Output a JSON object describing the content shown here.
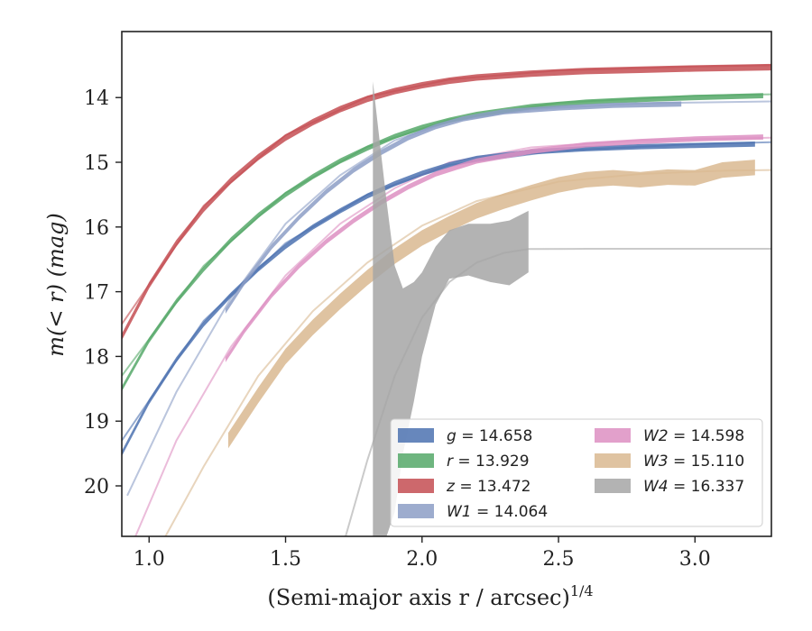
{
  "chart_data": {
    "type": "line",
    "xlabel": "(Semi-major axis r / arcsec)",
    "xlabel_superscript": "1/4",
    "ylabel": "m(< r) (mag)",
    "xlim": [
      0.9,
      3.28
    ],
    "ylim": [
      20.78,
      12.98
    ],
    "y_inverted": true,
    "x_ticks": [
      1.0,
      1.5,
      2.0,
      2.5,
      3.0
    ],
    "x_tick_labels": [
      "1.0",
      "1.5",
      "2.0",
      "2.5",
      "3.0"
    ],
    "y_ticks": [
      14,
      15,
      16,
      17,
      18,
      19,
      20
    ],
    "y_tick_labels": [
      "14",
      "15",
      "16",
      "17",
      "18",
      "19",
      "20"
    ],
    "grid": false,
    "legend_position": "lower-right",
    "legend_columns": 2,
    "series": [
      {
        "name": "g",
        "legend_value": "14.658",
        "color": "#4c72b0",
        "profile": {
          "x": [
            0.9,
            1.0,
            1.1,
            1.2,
            1.3,
            1.4,
            1.5,
            1.6,
            1.7,
            1.8,
            1.9,
            2.0,
            2.1,
            2.2,
            2.4,
            2.6,
            2.8,
            3.0,
            3.22
          ],
          "y": [
            19.5,
            18.7,
            18.05,
            17.5,
            17.05,
            16.65,
            16.3,
            16.0,
            15.75,
            15.52,
            15.33,
            15.17,
            15.04,
            14.94,
            14.84,
            14.79,
            14.76,
            14.74,
            14.72
          ]
        },
        "profile_width_mag": 0.08,
        "model": {
          "x": [
            0.9,
            1.2,
            1.5,
            1.8,
            2.1,
            2.5,
            3.0,
            3.28
          ],
          "y": [
            19.3,
            17.45,
            16.25,
            15.5,
            15.04,
            14.82,
            14.72,
            14.69
          ]
        }
      },
      {
        "name": "r",
        "legend_value": "13.929",
        "color": "#55a868",
        "profile": {
          "x": [
            0.9,
            1.0,
            1.1,
            1.2,
            1.3,
            1.4,
            1.5,
            1.6,
            1.7,
            1.8,
            1.9,
            2.0,
            2.1,
            2.2,
            2.4,
            2.6,
            2.8,
            3.0,
            3.25
          ],
          "y": [
            18.5,
            17.75,
            17.15,
            16.65,
            16.2,
            15.82,
            15.5,
            15.22,
            14.98,
            14.78,
            14.6,
            14.46,
            14.35,
            14.26,
            14.14,
            14.07,
            14.03,
            14.0,
            13.97
          ]
        },
        "profile_width_mag": 0.08,
        "model": {
          "x": [
            0.9,
            1.2,
            1.5,
            1.8,
            2.1,
            2.5,
            3.0,
            3.28
          ],
          "y": [
            18.3,
            16.6,
            15.47,
            14.76,
            14.34,
            14.08,
            13.97,
            13.95
          ]
        }
      },
      {
        "name": "z",
        "legend_value": "13.472",
        "color": "#c44e52",
        "profile": {
          "x": [
            0.9,
            1.0,
            1.1,
            1.2,
            1.3,
            1.4,
            1.5,
            1.6,
            1.7,
            1.8,
            1.9,
            2.0,
            2.1,
            2.2,
            2.4,
            2.6,
            2.8,
            3.0,
            3.28
          ],
          "y": [
            17.7,
            16.9,
            16.25,
            15.72,
            15.28,
            14.92,
            14.62,
            14.38,
            14.18,
            14.02,
            13.9,
            13.81,
            13.74,
            13.69,
            13.63,
            13.59,
            13.57,
            13.55,
            13.53
          ]
        },
        "profile_width_mag": 0.1,
        "model": {
          "x": [
            0.9,
            1.2,
            1.5,
            1.8,
            2.1,
            2.5,
            3.0,
            3.28
          ],
          "y": [
            17.5,
            15.67,
            14.58,
            13.99,
            13.72,
            13.58,
            13.52,
            13.5
          ]
        }
      },
      {
        "name": "W1",
        "legend_value": "14.064",
        "color": "#8c9ec6",
        "profile": {
          "x": [
            1.28,
            1.35,
            1.45,
            1.55,
            1.65,
            1.75,
            1.85,
            1.95,
            2.05,
            2.15,
            2.3,
            2.5,
            2.7,
            2.95
          ],
          "y": [
            17.3,
            16.85,
            16.3,
            15.85,
            15.45,
            15.12,
            14.85,
            14.62,
            14.45,
            14.33,
            14.22,
            14.16,
            14.12,
            14.1
          ]
        },
        "profile_width_mag": 0.08,
        "model": {
          "x": [
            0.92,
            1.1,
            1.3,
            1.5,
            1.7,
            1.9,
            2.1,
            2.4,
            2.8,
            3.28
          ],
          "y": [
            20.15,
            18.55,
            17.1,
            15.95,
            15.2,
            14.66,
            14.37,
            14.18,
            14.09,
            14.06
          ]
        }
      },
      {
        "name": "W2",
        "legend_value": "14.598",
        "color": "#dd8fc2",
        "profile": {
          "x": [
            1.28,
            1.35,
            1.45,
            1.55,
            1.65,
            1.75,
            1.85,
            1.95,
            2.05,
            2.2,
            2.4,
            2.6,
            2.8,
            3.0,
            3.25
          ],
          "y": [
            18.05,
            17.6,
            17.05,
            16.6,
            16.22,
            15.9,
            15.62,
            15.38,
            15.18,
            14.98,
            14.83,
            14.73,
            14.68,
            14.64,
            14.61
          ]
        },
        "profile_width_mag": 0.08,
        "model": {
          "x": [
            0.95,
            1.1,
            1.3,
            1.5,
            1.7,
            1.9,
            2.1,
            2.4,
            2.8,
            3.28
          ],
          "y": [
            20.78,
            19.3,
            17.85,
            16.75,
            15.95,
            15.4,
            15.0,
            14.77,
            14.66,
            14.62
          ]
        }
      },
      {
        "name": "W3",
        "legend_value": "15.110",
        "color": "#d9b991",
        "profile": {
          "x": [
            1.29,
            1.4,
            1.5,
            1.6,
            1.7,
            1.8,
            1.9,
            2.0,
            2.1,
            2.2,
            2.3,
            2.4,
            2.5,
            2.6,
            2.7,
            2.8,
            2.9,
            3.0,
            3.1,
            3.22
          ],
          "y": [
            19.3,
            18.6,
            18.0,
            17.55,
            17.15,
            16.78,
            16.45,
            16.17,
            15.95,
            15.75,
            15.6,
            15.47,
            15.35,
            15.27,
            15.24,
            15.27,
            15.23,
            15.24,
            15.12,
            15.08
          ]
        },
        "profile_width_mag": 0.24,
        "model": {
          "x": [
            1.06,
            1.2,
            1.4,
            1.6,
            1.8,
            2.0,
            2.2,
            2.5,
            2.8,
            3.1,
            3.28
          ],
          "y": [
            20.78,
            19.7,
            18.3,
            17.3,
            16.55,
            15.98,
            15.6,
            15.3,
            15.18,
            15.13,
            15.12
          ]
        }
      },
      {
        "name": "W4",
        "legend_value": "16.337",
        "color": "#a6a6a6",
        "profile": {
          "x": [
            1.82,
            1.84,
            1.87,
            1.9,
            1.93,
            1.97,
            2.0,
            2.05,
            2.1,
            2.17,
            2.25,
            2.32,
            2.39
          ],
          "y_lower": [
            20.78,
            20.78,
            20.78,
            20.4,
            19.5,
            18.7,
            18.0,
            17.2,
            16.8,
            16.75,
            16.85,
            16.9,
            16.7
          ],
          "y_upper": [
            13.75,
            14.5,
            15.6,
            16.6,
            16.95,
            16.85,
            16.7,
            16.3,
            16.05,
            15.95,
            15.95,
            15.9,
            15.75
          ]
        },
        "model": {
          "x": [
            1.72,
            1.8,
            1.9,
            2.0,
            2.1,
            2.2,
            2.3,
            2.39,
            2.6,
            3.28
          ],
          "y": [
            20.78,
            19.6,
            18.3,
            17.4,
            16.85,
            16.55,
            16.4,
            16.34,
            16.337,
            16.337
          ]
        }
      }
    ]
  }
}
